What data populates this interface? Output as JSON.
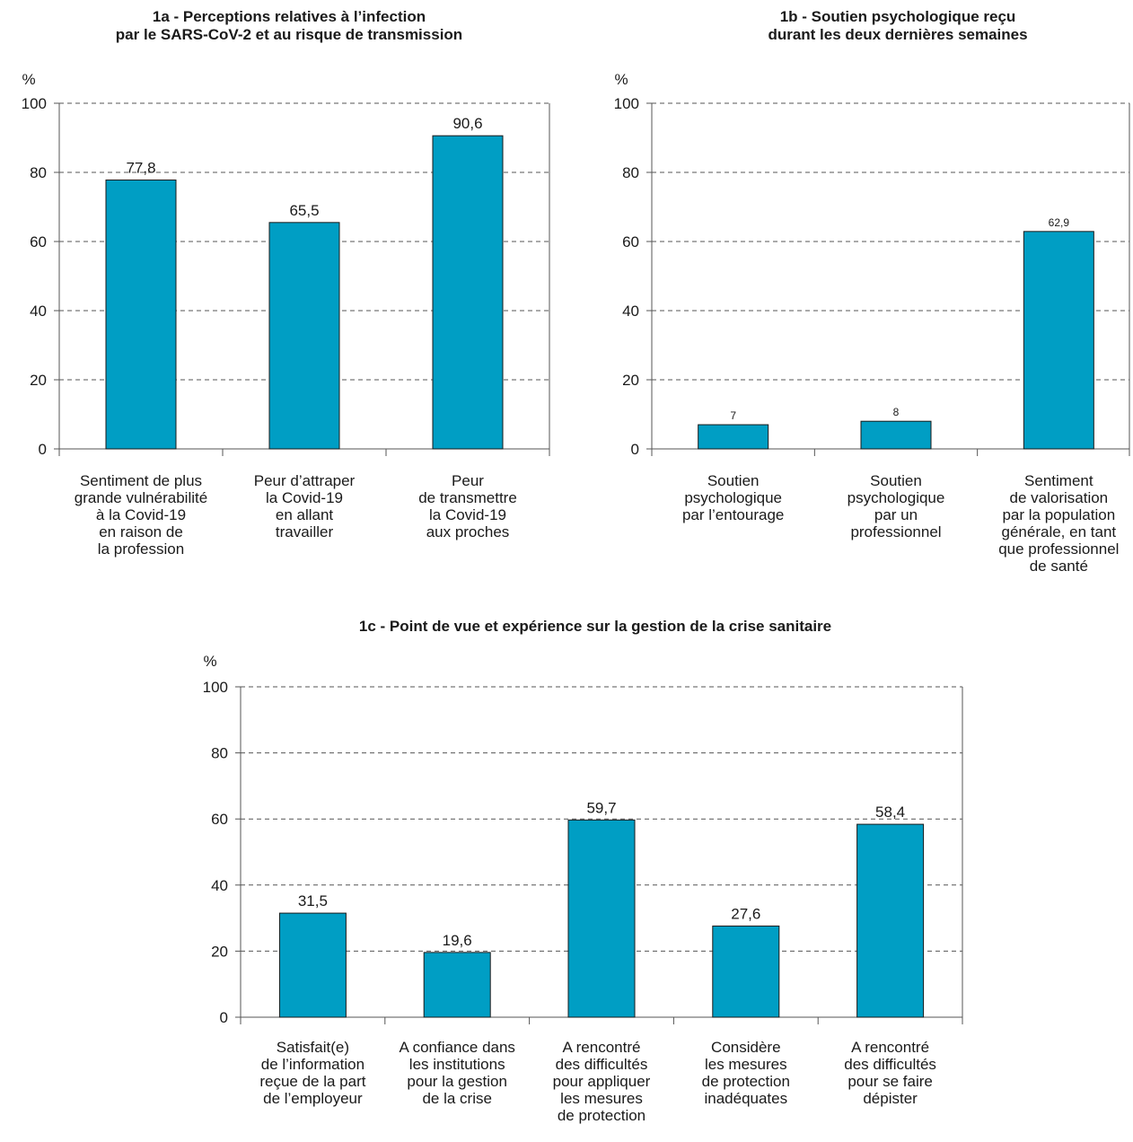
{
  "bar_color": "#009ec4",
  "chart_data": [
    {
      "type": "bar",
      "title": [
        "1a - Perceptions relatives à l’infection",
        "par le SARS-CoV-2 et au risque de transmission"
      ],
      "ylabel": "%",
      "ylim": [
        0,
        100
      ],
      "yticks": [
        0,
        20,
        40,
        60,
        80,
        100
      ],
      "grid": true,
      "value_labels": [
        "77,8",
        "65,5",
        "90,6"
      ],
      "categories": [
        [
          "Sentiment de plus",
          "grande vulnérabilité",
          "à la Covid-19",
          "en raison de",
          "la profession"
        ],
        [
          "Peur d’attraper",
          "la Covid-19",
          "en allant",
          "travailler"
        ],
        [
          "Peur",
          "de transmettre",
          "la Covid-19",
          "aux proches"
        ]
      ],
      "values": [
        77.8,
        65.5,
        90.6
      ]
    },
    {
      "type": "bar",
      "title": [
        "1b - Soutien psychologique reçu",
        "durant les deux dernières semaines"
      ],
      "ylabel": "%",
      "ylim": [
        0,
        100
      ],
      "yticks": [
        0,
        20,
        40,
        60,
        80,
        100
      ],
      "grid": true,
      "value_labels": [
        "7",
        "8",
        "62,9"
      ],
      "categories": [
        [
          "Soutien",
          "psychologique",
          "par l’entourage"
        ],
        [
          "Soutien",
          "psychologique",
          "par un",
          "professionnel"
        ],
        [
          "Sentiment",
          "de valorisation",
          "par la population",
          "générale, en tant",
          "que professionnel",
          "de santé"
        ]
      ],
      "values": [
        7,
        8,
        62.9
      ]
    },
    {
      "type": "bar",
      "title": [
        "1c - Point de vue et expérience sur la gestion de la crise sanitaire"
      ],
      "ylabel": "%",
      "ylim": [
        0,
        100
      ],
      "yticks": [
        0,
        20,
        40,
        60,
        80,
        100
      ],
      "grid": true,
      "value_labels": [
        "31,5",
        "19,6",
        "59,7",
        "27,6",
        "58,4"
      ],
      "categories": [
        [
          "Satisfait(e)",
          "de l’information",
          "reçue de la part",
          "de l’employeur"
        ],
        [
          "A confiance dans",
          "les institutions",
          "pour la gestion",
          "de la crise"
        ],
        [
          "A rencontré",
          "des difficultés",
          "pour appliquer",
          "les mesures",
          "de protection"
        ],
        [
          "Considère",
          "les mesures",
          "de protection",
          "inadéquates"
        ],
        [
          "A rencontré",
          "des difficultés",
          "pour se faire",
          "dépister"
        ]
      ],
      "values": [
        31.5,
        19.6,
        59.7,
        27.6,
        58.4
      ]
    }
  ]
}
